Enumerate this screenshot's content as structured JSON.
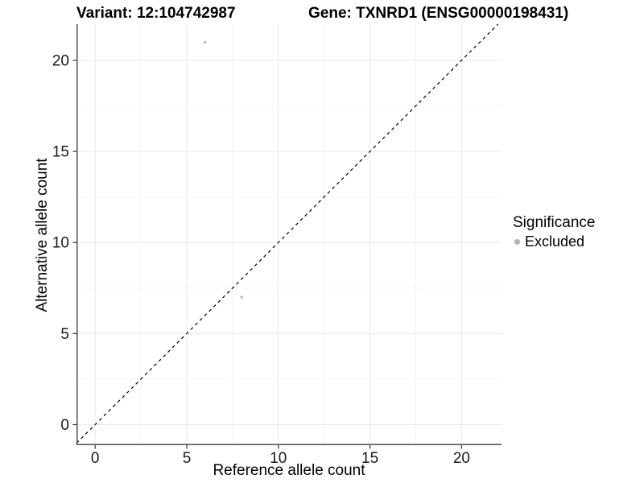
{
  "chart_data": {
    "type": "scatter",
    "title_left": "Variant: 12:104742987",
    "title_right": "Gene: TXNRD1 (ENSG00000198431)",
    "xlabel": "Reference allele count",
    "ylabel": "Alternative allele count",
    "xlim": [
      -1.02,
      22.18
    ],
    "ylim": [
      -1.13,
      21.99
    ],
    "xticks": [
      0,
      5,
      10,
      15,
      20
    ],
    "yticks": [
      0,
      5,
      10,
      15,
      20
    ],
    "minor_xticks": [
      2.5,
      7.5,
      12.5,
      17.5
    ],
    "minor_yticks": [
      2.5,
      7.5,
      12.5,
      17.5
    ],
    "grid": true,
    "series": [
      {
        "name": "Excluded",
        "color": "#bdbdbd",
        "points": [
          {
            "x": 6,
            "y": 21
          },
          {
            "x": 8,
            "y": 7
          }
        ]
      }
    ],
    "identity_line": {
      "style": "dashed",
      "slope": 1,
      "intercept": 0,
      "color": "#000000"
    },
    "legend": {
      "position": "right",
      "title": "Significance",
      "entries": [
        {
          "label": "Excluded",
          "color": "#b3b3b3"
        }
      ]
    },
    "colors": {
      "background": "#ffffff",
      "axis_line": "#4f4f4f",
      "tick_mark": "#333333",
      "tick_label": "#1a1a1a",
      "grid_major": "#e9e9e9",
      "grid_minor": "#f4f4f4",
      "point": "#bdbdbd",
      "text": "#000000"
    }
  }
}
